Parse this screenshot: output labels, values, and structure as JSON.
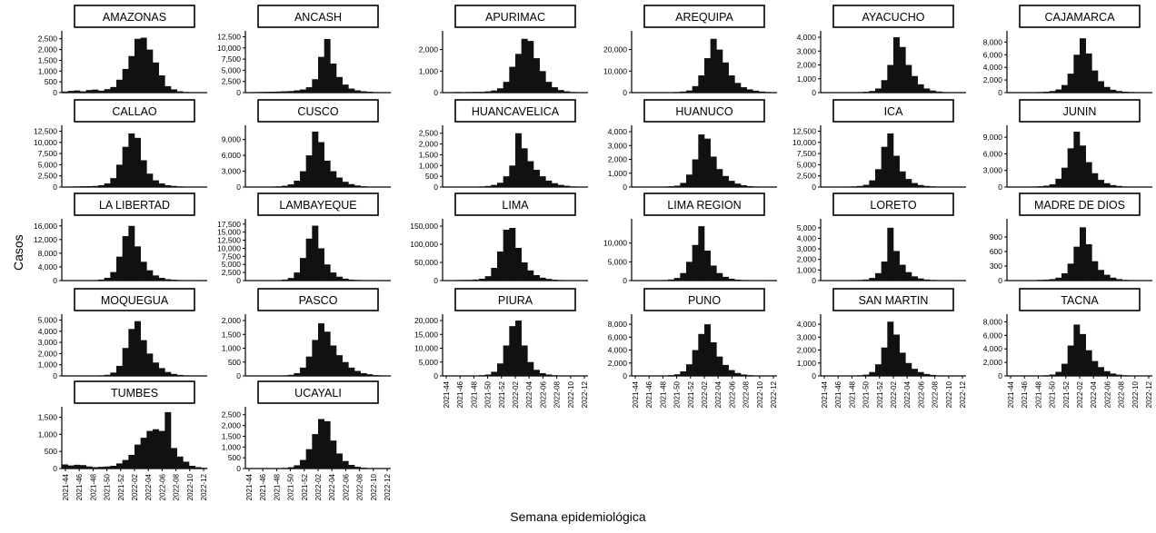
{
  "y_label": "Casos",
  "x_label": "Semana epidemiológica",
  "x_ticks": [
    "2021-44",
    "2021-46",
    "2021-48",
    "2021-50",
    "2021-52",
    "2022-02",
    "2022-04",
    "2022-06",
    "2022-08",
    "2022-10",
    "2022-12"
  ],
  "bar_color": "#111111",
  "chart_data": [
    {
      "type": "bar",
      "title": "AMAZONAS",
      "ylim": [
        0,
        2700
      ],
      "yticks": [
        "0",
        "500",
        "1,000",
        "1,500",
        "2,000",
        "2,500"
      ],
      "ytick_values": [
        0,
        500,
        1000,
        1500,
        2000,
        2500
      ],
      "values": [
        50,
        80,
        100,
        60,
        120,
        140,
        90,
        160,
        260,
        600,
        1100,
        1700,
        2500,
        2550,
        2000,
        1400,
        800,
        300,
        150,
        60,
        30,
        20,
        10,
        5
      ]
    },
    {
      "type": "bar",
      "title": "ANCASH",
      "ylim": [
        0,
        13000
      ],
      "yticks": [
        "0",
        "2,500",
        "5,000",
        "7,500",
        "10,000",
        "12,500"
      ],
      "ytick_values": [
        0,
        2500,
        5000,
        7500,
        10000,
        12500
      ],
      "values": [
        100,
        120,
        150,
        180,
        200,
        250,
        300,
        350,
        500,
        700,
        1200,
        3000,
        8000,
        12000,
        6500,
        3500,
        1800,
        900,
        500,
        300,
        200,
        120,
        80,
        50
      ]
    },
    {
      "type": "bar",
      "title": "APURIMAC",
      "ylim": [
        0,
        2700
      ],
      "yticks": [
        "0",
        "1,000",
        "2,000"
      ],
      "ytick_values": [
        0,
        1000,
        2000
      ],
      "values": [
        20,
        25,
        30,
        25,
        30,
        35,
        40,
        60,
        100,
        200,
        500,
        1200,
        1800,
        2500,
        2400,
        1600,
        1000,
        500,
        250,
        120,
        60,
        30,
        20,
        10
      ]
    },
    {
      "type": "bar",
      "title": "AREQUIPA",
      "ylim": [
        0,
        27000
      ],
      "yticks": [
        "0",
        "10,000",
        "20,000"
      ],
      "ytick_values": [
        0,
        10000,
        20000
      ],
      "values": [
        50,
        60,
        80,
        100,
        120,
        150,
        200,
        300,
        500,
        1000,
        3000,
        8000,
        16000,
        25000,
        20000,
        14000,
        8000,
        4500,
        2500,
        1500,
        900,
        500,
        300,
        200
      ]
    },
    {
      "type": "bar",
      "title": "AYACUCHO",
      "ylim": [
        0,
        4200
      ],
      "yticks": [
        "0",
        "1,000",
        "2,000",
        "3,000",
        "4,000"
      ],
      "ytick_values": [
        0,
        1000,
        2000,
        3000,
        4000
      ],
      "values": [
        10,
        15,
        20,
        20,
        25,
        30,
        40,
        60,
        120,
        300,
        900,
        2000,
        4000,
        3300,
        2000,
        1200,
        600,
        300,
        150,
        80,
        40,
        20,
        10,
        5
      ]
    },
    {
      "type": "bar",
      "title": "CAJAMARCA",
      "ylim": [
        0,
        9200
      ],
      "yticks": [
        "0",
        "2,000",
        "4,000",
        "6,000",
        "8,000"
      ],
      "ytick_values": [
        0,
        2000,
        4000,
        6000,
        8000
      ],
      "values": [
        30,
        40,
        50,
        60,
        80,
        100,
        150,
        250,
        500,
        1200,
        3000,
        6000,
        8600,
        6200,
        3500,
        1800,
        900,
        450,
        250,
        150,
        100,
        60,
        40,
        20
      ]
    },
    {
      "type": "bar",
      "title": "CALLAO",
      "ylim": [
        0,
        13000
      ],
      "yticks": [
        "0",
        "2,500",
        "5,000",
        "7,500",
        "10,000",
        "12,500"
      ],
      "ytick_values": [
        0,
        2500,
        5000,
        7500,
        10000,
        12500
      ],
      "values": [
        100,
        120,
        150,
        180,
        200,
        250,
        400,
        800,
        2000,
        5000,
        9000,
        12000,
        11000,
        6000,
        3000,
        1500,
        800,
        400,
        250,
        150,
        100,
        80,
        60,
        40
      ]
    },
    {
      "type": "bar",
      "title": "CUSCO",
      "ylim": [
        0,
        11000
      ],
      "yticks": [
        "0",
        "3,000",
        "6,000",
        "9,000"
      ],
      "ytick_values": [
        0,
        3000,
        6000,
        9000
      ],
      "values": [
        40,
        50,
        60,
        80,
        100,
        150,
        250,
        500,
        1200,
        3000,
        6000,
        10500,
        8500,
        5000,
        3000,
        1800,
        1000,
        550,
        300,
        150,
        80,
        50,
        30,
        20
      ]
    },
    {
      "type": "bar",
      "title": "HUANCAVELICA",
      "ylim": [
        0,
        2700
      ],
      "yticks": [
        "0",
        "500",
        "1,000",
        "1,500",
        "2,000",
        "2,500"
      ],
      "ytick_values": [
        0,
        500,
        1000,
        1500,
        2000,
        2500
      ],
      "values": [
        5,
        5,
        10,
        10,
        15,
        20,
        30,
        50,
        100,
        200,
        500,
        1000,
        2500,
        1800,
        1200,
        800,
        500,
        300,
        180,
        100,
        60,
        30,
        20,
        10
      ]
    },
    {
      "type": "bar",
      "title": "HUANUCO",
      "ylim": [
        0,
        4200
      ],
      "yticks": [
        "0",
        "1,000",
        "2,000",
        "3,000",
        "4,000"
      ],
      "ytick_values": [
        0,
        1000,
        2000,
        3000,
        4000
      ],
      "values": [
        10,
        15,
        20,
        25,
        30,
        40,
        60,
        100,
        300,
        900,
        2000,
        3800,
        3500,
        2200,
        1300,
        800,
        450,
        250,
        130,
        70,
        40,
        20,
        10,
        5
      ]
    },
    {
      "type": "bar",
      "title": "ICA",
      "ylim": [
        0,
        13000
      ],
      "yticks": [
        "0",
        "2,500",
        "5,000",
        "7,500",
        "10,000",
        "12,500"
      ],
      "ytick_values": [
        0,
        2500,
        5000,
        7500,
        10000,
        12500
      ],
      "values": [
        50,
        60,
        80,
        100,
        120,
        150,
        250,
        500,
        1500,
        4000,
        9000,
        12000,
        7000,
        3500,
        1800,
        900,
        450,
        250,
        150,
        80,
        50,
        30,
        20,
        10
      ]
    },
    {
      "type": "bar",
      "title": "JUNIN",
      "ylim": [
        0,
        10500
      ],
      "yticks": [
        "0",
        "3,000",
        "6,000",
        "9,000"
      ],
      "ytick_values": [
        0,
        3000,
        6000,
        9000
      ],
      "values": [
        30,
        40,
        60,
        80,
        100,
        150,
        250,
        500,
        1500,
        3500,
        7000,
        10000,
        7500,
        4500,
        2500,
        1300,
        700,
        350,
        200,
        100,
        60,
        40,
        20,
        10
      ]
    },
    {
      "type": "bar",
      "title": "LA LIBERTAD",
      "ylim": [
        0,
        17000
      ],
      "yticks": [
        "0",
        "4,000",
        "8,000",
        "12,000",
        "16,000"
      ],
      "ytick_values": [
        0,
        4000,
        8000,
        12000,
        16000
      ],
      "values": [
        50,
        60,
        80,
        100,
        120,
        150,
        300,
        800,
        2500,
        7000,
        13000,
        16000,
        10000,
        5500,
        3000,
        1500,
        800,
        400,
        250,
        150,
        100,
        60,
        40,
        20
      ]
    },
    {
      "type": "bar",
      "title": "LAMBAYEQUE",
      "ylim": [
        0,
        18000
      ],
      "yticks": [
        "0",
        "2,500",
        "5,000",
        "7,500",
        "10,000",
        "12,500",
        "15,000",
        "17,500"
      ],
      "ytick_values": [
        0,
        2500,
        5000,
        7500,
        10000,
        12500,
        15000,
        17500
      ],
      "values": [
        50,
        60,
        80,
        100,
        120,
        150,
        300,
        800,
        2500,
        7000,
        13000,
        17000,
        10000,
        5000,
        2500,
        1200,
        600,
        300,
        200,
        120,
        80,
        50,
        30,
        20
      ]
    },
    {
      "type": "bar",
      "title": "LIMA",
      "ylim": [
        0,
        160000
      ],
      "yticks": [
        "0",
        "50,000",
        "100,000",
        "150,000"
      ],
      "ytick_values": [
        0,
        50000,
        100000,
        150000
      ],
      "values": [
        1000,
        1200,
        1500,
        1800,
        2000,
        3000,
        5000,
        12000,
        35000,
        80000,
        140000,
        145000,
        90000,
        50000,
        28000,
        15000,
        8000,
        4500,
        2500,
        1500,
        900,
        600,
        400,
        200
      ]
    },
    {
      "type": "bar",
      "title": "LIMA REGION",
      "ylim": [
        0,
        15500
      ],
      "yticks": [
        "0",
        "5,000",
        "10,000"
      ],
      "ytick_values": [
        0,
        5000,
        10000
      ],
      "values": [
        40,
        50,
        60,
        80,
        100,
        150,
        300,
        700,
        2000,
        5000,
        9500,
        14500,
        8000,
        4000,
        2000,
        1000,
        500,
        250,
        150,
        80,
        50,
        30,
        20,
        10
      ]
    },
    {
      "type": "bar",
      "title": "LORETO",
      "ylim": [
        0,
        5500
      ],
      "yticks": [
        "0",
        "1,000",
        "2,000",
        "3,000",
        "4,000",
        "5,000"
      ],
      "ytick_values": [
        0,
        1000,
        2000,
        3000,
        4000,
        5000
      ],
      "values": [
        20,
        25,
        30,
        35,
        40,
        50,
        60,
        100,
        250,
        700,
        1800,
        5000,
        2800,
        1500,
        800,
        400,
        200,
        100,
        60,
        30,
        20,
        10,
        5,
        5
      ]
    },
    {
      "type": "bar",
      "title": "MADRE DE DIOS",
      "ylim": [
        0,
        1200
      ],
      "yticks": [
        "0",
        "300",
        "600",
        "900"
      ],
      "ytick_values": [
        0,
        300,
        600,
        900
      ],
      "values": [
        5,
        5,
        5,
        10,
        10,
        15,
        20,
        30,
        60,
        150,
        350,
        700,
        1100,
        750,
        400,
        220,
        120,
        60,
        30,
        15,
        10,
        5,
        5,
        5
      ]
    },
    {
      "type": "bar",
      "title": "MOQUEGUA",
      "ylim": [
        0,
        5200
      ],
      "yticks": [
        "0",
        "1,000",
        "2,000",
        "3,000",
        "4,000",
        "5,000"
      ],
      "ytick_values": [
        0,
        1000,
        2000,
        3000,
        4000,
        5000
      ],
      "values": [
        10,
        15,
        15,
        20,
        25,
        30,
        50,
        100,
        300,
        900,
        2500,
        4200,
        4900,
        3200,
        2000,
        1200,
        700,
        350,
        180,
        90,
        50,
        30,
        15,
        10
      ]
    },
    {
      "type": "bar",
      "title": "PASCO",
      "ylim": [
        0,
        2100
      ],
      "yticks": [
        "0",
        "500",
        "1,000",
        "1,500",
        "2,000"
      ],
      "ytick_values": [
        0,
        500,
        1000,
        1500,
        2000
      ],
      "values": [
        5,
        5,
        5,
        10,
        10,
        15,
        20,
        40,
        100,
        300,
        700,
        1300,
        1900,
        1600,
        1100,
        750,
        500,
        300,
        180,
        100,
        60,
        30,
        20,
        10
      ]
    },
    {
      "type": "bar",
      "title": "PIURA",
      "ylim": [
        0,
        21000
      ],
      "yticks": [
        "0",
        "5,000",
        "10,000",
        "15,000",
        "20,000"
      ],
      "ytick_values": [
        0,
        5000,
        10000,
        15000,
        20000
      ],
      "values": [
        50,
        60,
        80,
        100,
        120,
        150,
        250,
        500,
        1500,
        4500,
        11000,
        18000,
        20000,
        11000,
        5000,
        2200,
        1000,
        500,
        250,
        150,
        100,
        60,
        40,
        20
      ]
    },
    {
      "type": "bar",
      "title": "PUNO",
      "ylim": [
        0,
        9000
      ],
      "yticks": [
        "0",
        "2,000",
        "4,000",
        "6,000",
        "8,000"
      ],
      "ytick_values": [
        0,
        2000,
        4000,
        6000,
        8000
      ],
      "values": [
        20,
        30,
        40,
        50,
        60,
        80,
        120,
        250,
        700,
        1800,
        4000,
        6500,
        8000,
        5200,
        3000,
        1700,
        900,
        450,
        220,
        120,
        60,
        30,
        20,
        10
      ]
    },
    {
      "type": "bar",
      "title": "SAN MARTIN",
      "ylim": [
        0,
        4500
      ],
      "yticks": [
        "0",
        "1,000",
        "2,000",
        "3,000",
        "4,000"
      ],
      "ytick_values": [
        0,
        1000,
        2000,
        3000,
        4000
      ],
      "values": [
        10,
        15,
        20,
        20,
        25,
        30,
        50,
        100,
        300,
        900,
        2200,
        4200,
        3200,
        1800,
        1000,
        550,
        300,
        150,
        80,
        40,
        20,
        10,
        5,
        5
      ]
    },
    {
      "type": "bar",
      "title": "TACNA",
      "ylim": [
        0,
        8600
      ],
      "yticks": [
        "0",
        "2,000",
        "4,000",
        "6,000",
        "8,000"
      ],
      "ytick_values": [
        0,
        2000,
        4000,
        6000,
        8000
      ],
      "values": [
        20,
        25,
        30,
        40,
        50,
        60,
        100,
        200,
        600,
        1800,
        4500,
        7600,
        6200,
        3800,
        2200,
        1300,
        700,
        350,
        180,
        100,
        50,
        30,
        20,
        10
      ]
    },
    {
      "type": "bar",
      "title": "TUMBES",
      "ylim": [
        0,
        1700
      ],
      "yticks": [
        "0",
        "500",
        "1,000",
        "1,500"
      ],
      "ytick_values": [
        0,
        500,
        1000,
        1500
      ],
      "values": [
        120,
        90,
        110,
        100,
        60,
        40,
        50,
        60,
        80,
        150,
        250,
        400,
        700,
        900,
        1100,
        1150,
        1100,
        1650,
        600,
        350,
        200,
        80,
        40,
        20
      ]
    },
    {
      "type": "bar",
      "title": "UCAYALI",
      "ylim": [
        0,
        2700
      ],
      "yticks": [
        "0",
        "500",
        "1,000",
        "1,500",
        "2,000",
        "2,500"
      ],
      "ytick_values": [
        0,
        500,
        1000,
        1500,
        2000,
        2500
      ],
      "values": [
        5,
        5,
        10,
        10,
        15,
        20,
        30,
        60,
        150,
        400,
        900,
        1600,
        2300,
        2200,
        1300,
        700,
        350,
        170,
        80,
        40,
        20,
        10,
        5,
        5
      ]
    }
  ]
}
